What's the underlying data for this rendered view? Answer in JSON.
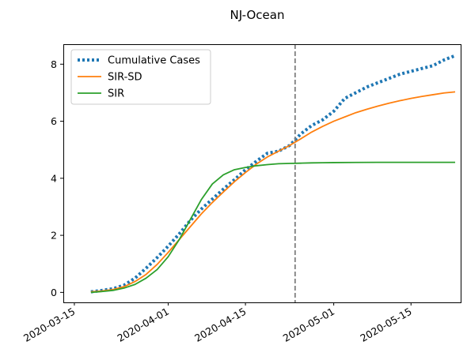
{
  "chart_data": {
    "type": "line",
    "title": "NJ-Ocean",
    "xlabel": "",
    "ylabel": "",
    "x_axis": {
      "type": "date",
      "range": [
        "2020-03-13",
        "2020-05-24"
      ],
      "ticks": [
        "2020-03-15",
        "2020-04-01",
        "2020-04-15",
        "2020-05-01",
        "2020-05-15"
      ]
    },
    "y_axis": {
      "range": [
        -0.35,
        8.7
      ],
      "ticks": [
        0,
        2,
        4,
        6,
        8
      ]
    },
    "grid": false,
    "legend_position": "upper-left",
    "annotations": [
      {
        "type": "vertical-line",
        "x": "2020-04-24",
        "style": "dashed",
        "color": "#808080"
      }
    ],
    "series": [
      {
        "name": "Cumulative Cases",
        "style": "dotted",
        "color": "#1f77b4",
        "x": [
          "2020-03-18",
          "2020-03-20",
          "2020-03-22",
          "2020-03-24",
          "2020-03-26",
          "2020-03-28",
          "2020-03-30",
          "2020-04-01",
          "2020-04-03",
          "2020-04-05",
          "2020-04-07",
          "2020-04-09",
          "2020-04-11",
          "2020-04-13",
          "2020-04-15",
          "2020-04-17",
          "2020-04-19",
          "2020-04-21",
          "2020-04-23",
          "2020-04-25",
          "2020-04-27",
          "2020-04-29",
          "2020-05-01",
          "2020-05-03",
          "2020-05-05",
          "2020-05-07",
          "2020-05-09",
          "2020-05-11",
          "2020-05-13",
          "2020-05-15",
          "2020-05-17",
          "2020-05-19",
          "2020-05-21",
          "2020-05-23"
        ],
        "y": [
          0.02,
          0.07,
          0.13,
          0.25,
          0.5,
          0.85,
          1.22,
          1.62,
          2.05,
          2.52,
          2.92,
          3.27,
          3.62,
          3.95,
          4.3,
          4.6,
          4.88,
          4.95,
          5.15,
          5.55,
          5.85,
          6.05,
          6.35,
          6.8,
          7.0,
          7.2,
          7.35,
          7.5,
          7.65,
          7.75,
          7.85,
          7.95,
          8.15,
          8.3
        ]
      },
      {
        "name": "SIR-SD",
        "style": "solid",
        "color": "#ff7f0e",
        "x": [
          "2020-03-18",
          "2020-03-20",
          "2020-03-22",
          "2020-03-24",
          "2020-03-26",
          "2020-03-28",
          "2020-03-30",
          "2020-04-01",
          "2020-04-03",
          "2020-04-05",
          "2020-04-07",
          "2020-04-09",
          "2020-04-11",
          "2020-04-13",
          "2020-04-15",
          "2020-04-17",
          "2020-04-19",
          "2020-04-21",
          "2020-04-23",
          "2020-04-25",
          "2020-04-27",
          "2020-04-29",
          "2020-05-01",
          "2020-05-03",
          "2020-05-05",
          "2020-05-07",
          "2020-05-09",
          "2020-05-11",
          "2020-05-13",
          "2020-05-15",
          "2020-05-17",
          "2020-05-19",
          "2020-05-21",
          "2020-05-23"
        ],
        "y": [
          0.02,
          0.05,
          0.1,
          0.2,
          0.38,
          0.63,
          0.98,
          1.4,
          1.85,
          2.3,
          2.75,
          3.15,
          3.52,
          3.88,
          4.2,
          4.5,
          4.75,
          4.95,
          5.15,
          5.38,
          5.62,
          5.82,
          6.0,
          6.15,
          6.3,
          6.42,
          6.53,
          6.63,
          6.72,
          6.8,
          6.87,
          6.93,
          6.99,
          7.03
        ]
      },
      {
        "name": "SIR",
        "style": "solid",
        "color": "#2ca02c",
        "x": [
          "2020-03-18",
          "2020-03-20",
          "2020-03-22",
          "2020-03-24",
          "2020-03-26",
          "2020-03-28",
          "2020-03-30",
          "2020-04-01",
          "2020-04-03",
          "2020-04-05",
          "2020-04-07",
          "2020-04-09",
          "2020-04-11",
          "2020-04-13",
          "2020-04-15",
          "2020-04-17",
          "2020-04-19",
          "2020-04-21",
          "2020-04-23",
          "2020-04-25",
          "2020-04-27",
          "2020-04-29",
          "2020-05-01",
          "2020-05-05",
          "2020-05-09",
          "2020-05-13",
          "2020-05-17",
          "2020-05-23"
        ],
        "y": [
          0.0,
          0.03,
          0.07,
          0.15,
          0.28,
          0.5,
          0.8,
          1.25,
          1.85,
          2.55,
          3.25,
          3.8,
          4.12,
          4.3,
          4.38,
          4.44,
          4.48,
          4.51,
          4.52,
          4.53,
          4.54,
          4.545,
          4.55,
          4.555,
          4.56,
          4.56,
          4.56,
          4.56
        ]
      }
    ]
  }
}
